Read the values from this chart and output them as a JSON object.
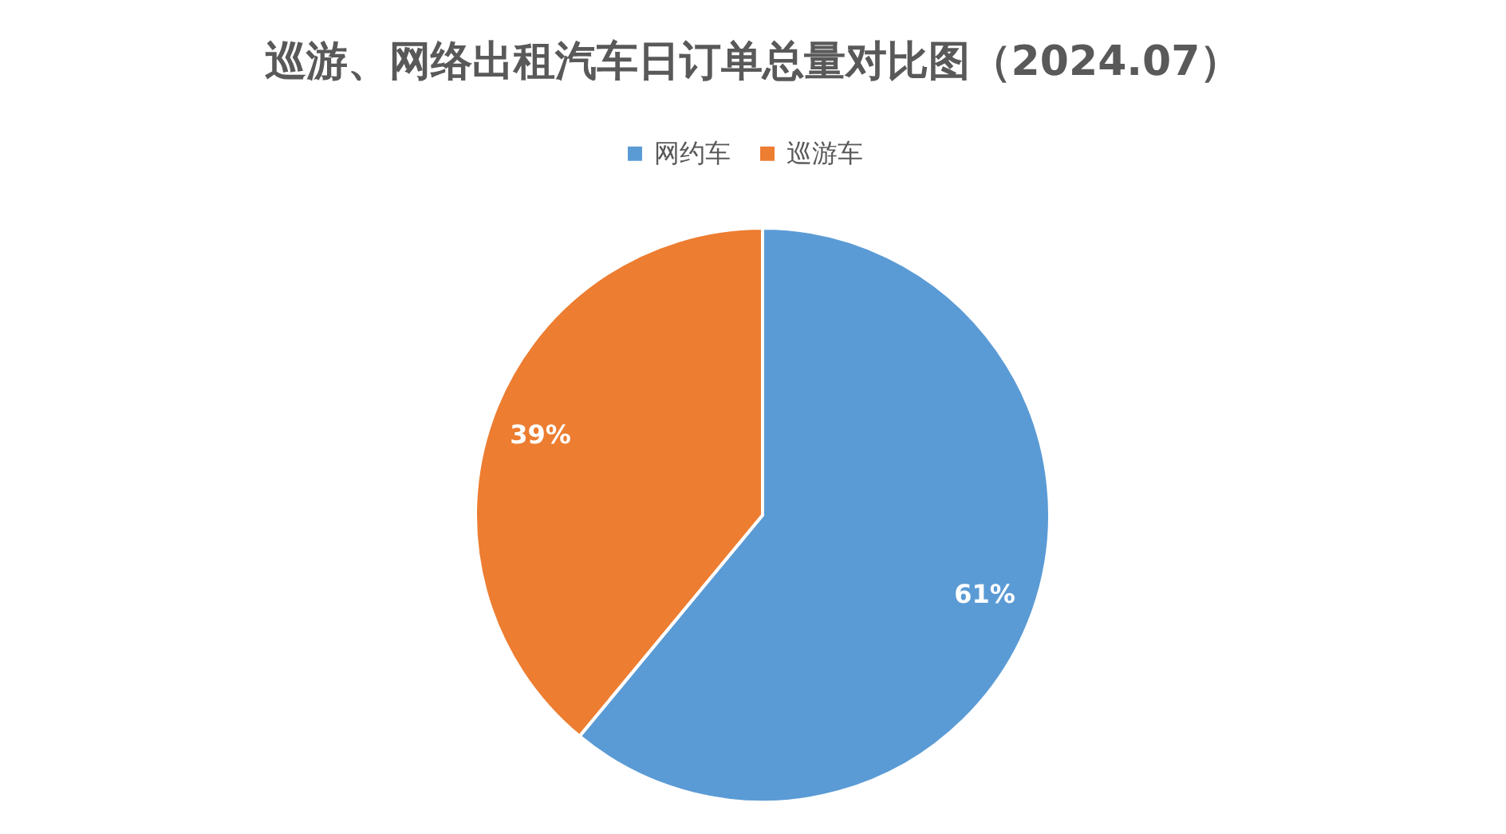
{
  "chart_data": {
    "type": "pie",
    "title": "巡游、网络出租汽车日订单总量对比图（2024.07）",
    "categories": [
      "网约车",
      "巡游车"
    ],
    "values": [
      61,
      39
    ],
    "value_labels": [
      "61%",
      "39%"
    ],
    "colors": [
      "#5b9bd5",
      "#ed7d31"
    ],
    "legend": "top"
  }
}
